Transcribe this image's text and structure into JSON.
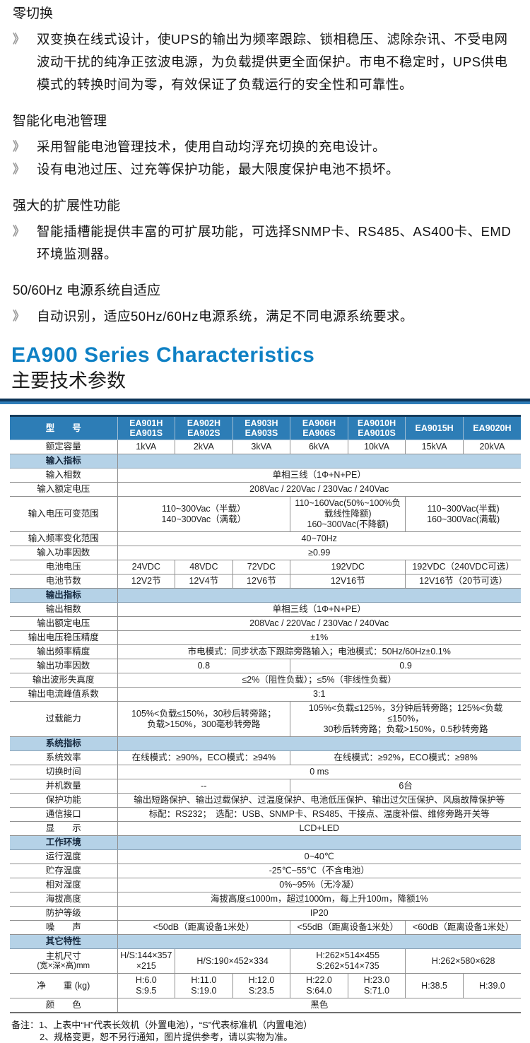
{
  "features": {
    "bullet_icon": "》",
    "sections": [
      {
        "heading": "零切换",
        "bullets": [
          "双变换在线式设计，使UPS的输出为频率跟踪、锁相稳压、滤除杂讯、不受电网波动干扰的纯净正弦波电源，为负载提供更全面保护。市电不稳定时，UPS供电模式的转换时间为零，有效保证了负载运行的安全性和可靠性。"
        ]
      },
      {
        "heading": "智能化电池管理",
        "bullets": [
          "采用智能电池管理技术，使用自动均浮充切换的充电设计。",
          "设有电池过压、过充等保护功能，最大限度保护电池不损坏。"
        ]
      },
      {
        "heading": "强大的扩展性功能",
        "bullets": [
          "智能插槽能提供丰富的可扩展功能，可选择SNMP卡、RS485、AS400卡、EMD环境监测器。"
        ]
      },
      {
        "heading": "50/60Hz 电源系统自适应",
        "bullets": [
          "自动识别，适应50Hz/60Hz电源系统，满足不同电源系统要求。"
        ]
      }
    ]
  },
  "titles": {
    "en": "EA900 Series Characteristics",
    "zh": "主要技术参数"
  },
  "colors": {
    "header_blue": "#2d7db6",
    "section_blue": "#b5d2e7",
    "title_blue": "#0e80c4",
    "bar_dark": "#0d3357",
    "bar_blue": "#2f7cb8",
    "border_gray": "#909090"
  },
  "table": {
    "header": {
      "label": "型　　号",
      "models": [
        [
          "EA901H",
          "EA901S"
        ],
        [
          "EA902H",
          "EA902S"
        ],
        [
          "EA903H",
          "EA903S"
        ],
        [
          "EA906H",
          "EA906S"
        ],
        [
          "EA9010H",
          "EA9010S"
        ],
        [
          "EA9015H"
        ],
        [
          "EA9020H"
        ]
      ]
    },
    "rows": [
      {
        "label": "额定容量",
        "cells": [
          {
            "t": "1kVA"
          },
          {
            "t": "2kVA"
          },
          {
            "t": "3kVA"
          },
          {
            "t": "6kVA"
          },
          {
            "t": "10kVA"
          },
          {
            "t": "15kVA"
          },
          {
            "t": "20kVA"
          }
        ]
      },
      {
        "section": "输入指标"
      },
      {
        "label": "输入相数",
        "cells": [
          {
            "t": "单相三线（1Φ+N+PE）",
            "s": 7
          }
        ]
      },
      {
        "label": "输入额定电压",
        "cells": [
          {
            "t": "208Vac / 220Vac / 230Vac / 240Vac",
            "s": 7
          }
        ]
      },
      {
        "label": "输入电压可变范围",
        "h": "tall",
        "cells": [
          {
            "t": [
              "110~300Vac（半载）",
              "140~300Vac（满载）"
            ],
            "s": 3
          },
          {
            "t": [
              "110~160Vac(50%~100%负载线性降额)",
              "160~300Vac(不降额)"
            ],
            "s": 2,
            "sm": true
          },
          {
            "t": [
              "110~300Vac(半载)",
              "160~300Vac(满载)"
            ],
            "s": 2
          }
        ]
      },
      {
        "label": "输入频率变化范围",
        "cells": [
          {
            "t": "40~70Hz",
            "s": 7
          }
        ]
      },
      {
        "label": "输入功率因数",
        "cells": [
          {
            "t": "≥0.99",
            "s": 7
          }
        ]
      },
      {
        "label": "电池电压",
        "cells": [
          {
            "t": "24VDC"
          },
          {
            "t": "48VDC"
          },
          {
            "t": "72VDC"
          },
          {
            "t": "192VDC",
            "s": 2
          },
          {
            "t": "192VDC（240VDC可选）",
            "s": 2
          }
        ]
      },
      {
        "label": "电池节数",
        "cells": [
          {
            "t": "12V2节"
          },
          {
            "t": "12V4节"
          },
          {
            "t": "12V6节"
          },
          {
            "t": "12V16节",
            "s": 2
          },
          {
            "t": "12V16节（20节可选）",
            "s": 2
          }
        ]
      },
      {
        "section": "输出指标"
      },
      {
        "label": "输出相数",
        "cells": [
          {
            "t": "单相三线（1Φ+N+PE）",
            "s": 7
          }
        ]
      },
      {
        "label": "输出额定电压",
        "cells": [
          {
            "t": "208Vac / 220Vac / 230Vac / 240Vac",
            "s": 7
          }
        ]
      },
      {
        "label": "输出电压稳压精度",
        "cells": [
          {
            "t": "±1%",
            "s": 7
          }
        ]
      },
      {
        "label": "输出频率精度",
        "cells": [
          {
            "t": "市电模式：同步状态下跟踪旁路输入；电池模式：50Hz/60Hz±0.1%",
            "s": 7
          }
        ]
      },
      {
        "label": "输出功率因数",
        "cells": [
          {
            "t": "0.8",
            "s": 3
          },
          {
            "t": "0.9",
            "s": 4
          }
        ]
      },
      {
        "label": "输出波形失真度",
        "cells": [
          {
            "t": "≤2%（阻性负载）；≤5%（非线性负载）",
            "s": 7
          }
        ]
      },
      {
        "label": "输出电流峰值系数",
        "cells": [
          {
            "t": "3:1",
            "s": 7
          }
        ]
      },
      {
        "label": "过载能力",
        "h": "tall",
        "cells": [
          {
            "t": [
              "105%<负载≤150%，30秒后转旁路；",
              "负载>150%，300毫秒转旁路"
            ],
            "s": 3
          },
          {
            "t": [
              "105%<负载≤125%，3分钟后转旁路；125%<负载≤150%，",
              "30秒后转旁路；负载>150%，0.5秒转旁路"
            ],
            "s": 4
          }
        ]
      },
      {
        "section": "系统指标"
      },
      {
        "label": "系统效率",
        "cells": [
          {
            "t": "在线模式：≥90%，ECO模式：≥94%",
            "s": 3
          },
          {
            "t": "在线模式：≥92%，ECO模式：≥98%",
            "s": 4
          }
        ]
      },
      {
        "label": "切换时间",
        "cells": [
          {
            "t": "0 ms",
            "s": 7
          }
        ]
      },
      {
        "label": "并机数量",
        "cells": [
          {
            "t": "--",
            "s": 3
          },
          {
            "t": "6台",
            "s": 4
          }
        ]
      },
      {
        "label": "保护功能",
        "cells": [
          {
            "t": "输出短路保护、输出过载保护、过温度保护、电池低压保护、输出过欠压保护、风扇故障保护等",
            "s": 7
          }
        ]
      },
      {
        "label": "通信接口",
        "cells": [
          {
            "t": "标配：RS232；　选配：USB、SNMP卡、RS485、干接点、温度补偿、维修旁路开关等",
            "s": 7
          }
        ]
      },
      {
        "label": "显　　示",
        "cells": [
          {
            "t": "LCD+LED",
            "s": 7
          }
        ]
      },
      {
        "section": "工作环境"
      },
      {
        "label": "运行温度",
        "cells": [
          {
            "t": "0~40℃",
            "s": 7
          }
        ]
      },
      {
        "label": "贮存温度",
        "cells": [
          {
            "t": "-25℃~55℃（不含电池）",
            "s": 7
          }
        ]
      },
      {
        "label": "相对湿度",
        "cells": [
          {
            "t": "0%~95%（无冷凝）",
            "s": 7
          }
        ]
      },
      {
        "label": "海拔高度",
        "cells": [
          {
            "t": "海拔高度≤1000m，超过1000m，每上升100m，降额1%",
            "s": 7
          }
        ]
      },
      {
        "label": "防护等级",
        "cells": [
          {
            "t": "IP20",
            "s": 7
          }
        ]
      },
      {
        "label": "噪　　声",
        "cells": [
          {
            "t": "<50dB（距离设备1米处）",
            "s": 3
          },
          {
            "t": "<55dB（距离设备1米处）",
            "s": 2
          },
          {
            "t": "<60dB（距离设备1米处）",
            "s": 2
          }
        ]
      },
      {
        "section": "其它特性"
      },
      {
        "label": "主机尺寸",
        "sub": "(宽×深×高)mm",
        "h": "tall2",
        "cells": [
          {
            "t": [
              "H/S:144×357",
              "×215"
            ]
          },
          {
            "t": "H/S:190×452×334",
            "s": 2
          },
          {
            "t": [
              "H:262×514×455",
              "S:262×514×735"
            ],
            "s": 2
          },
          {
            "t": "H:262×580×628",
            "s": 2
          }
        ]
      },
      {
        "label": "净　　重 (kg)",
        "h": "tall3",
        "cells": [
          {
            "t": [
              "H:6.0",
              "S:9.5"
            ]
          },
          {
            "t": [
              "H:11.0",
              "S:19.0"
            ]
          },
          {
            "t": [
              "H:12.0",
              "S:23.5"
            ]
          },
          {
            "t": [
              "H:22.0",
              "S:64.0"
            ]
          },
          {
            "t": [
              "H:23.0",
              "S:71.0"
            ]
          },
          {
            "t": "H:38.5"
          },
          {
            "t": "H:39.0"
          }
        ]
      },
      {
        "label": "颜　　色",
        "cells": [
          {
            "t": "黑色",
            "s": 7
          }
        ]
      }
    ]
  },
  "notes": {
    "label": "备注：",
    "lines": [
      "1、上表中“H”代表长效机（外置电池），“S”代表标准机（内置电池）",
      "2、规格变更，恕不另行通知，图片提供参考，请以实物为准。"
    ]
  }
}
